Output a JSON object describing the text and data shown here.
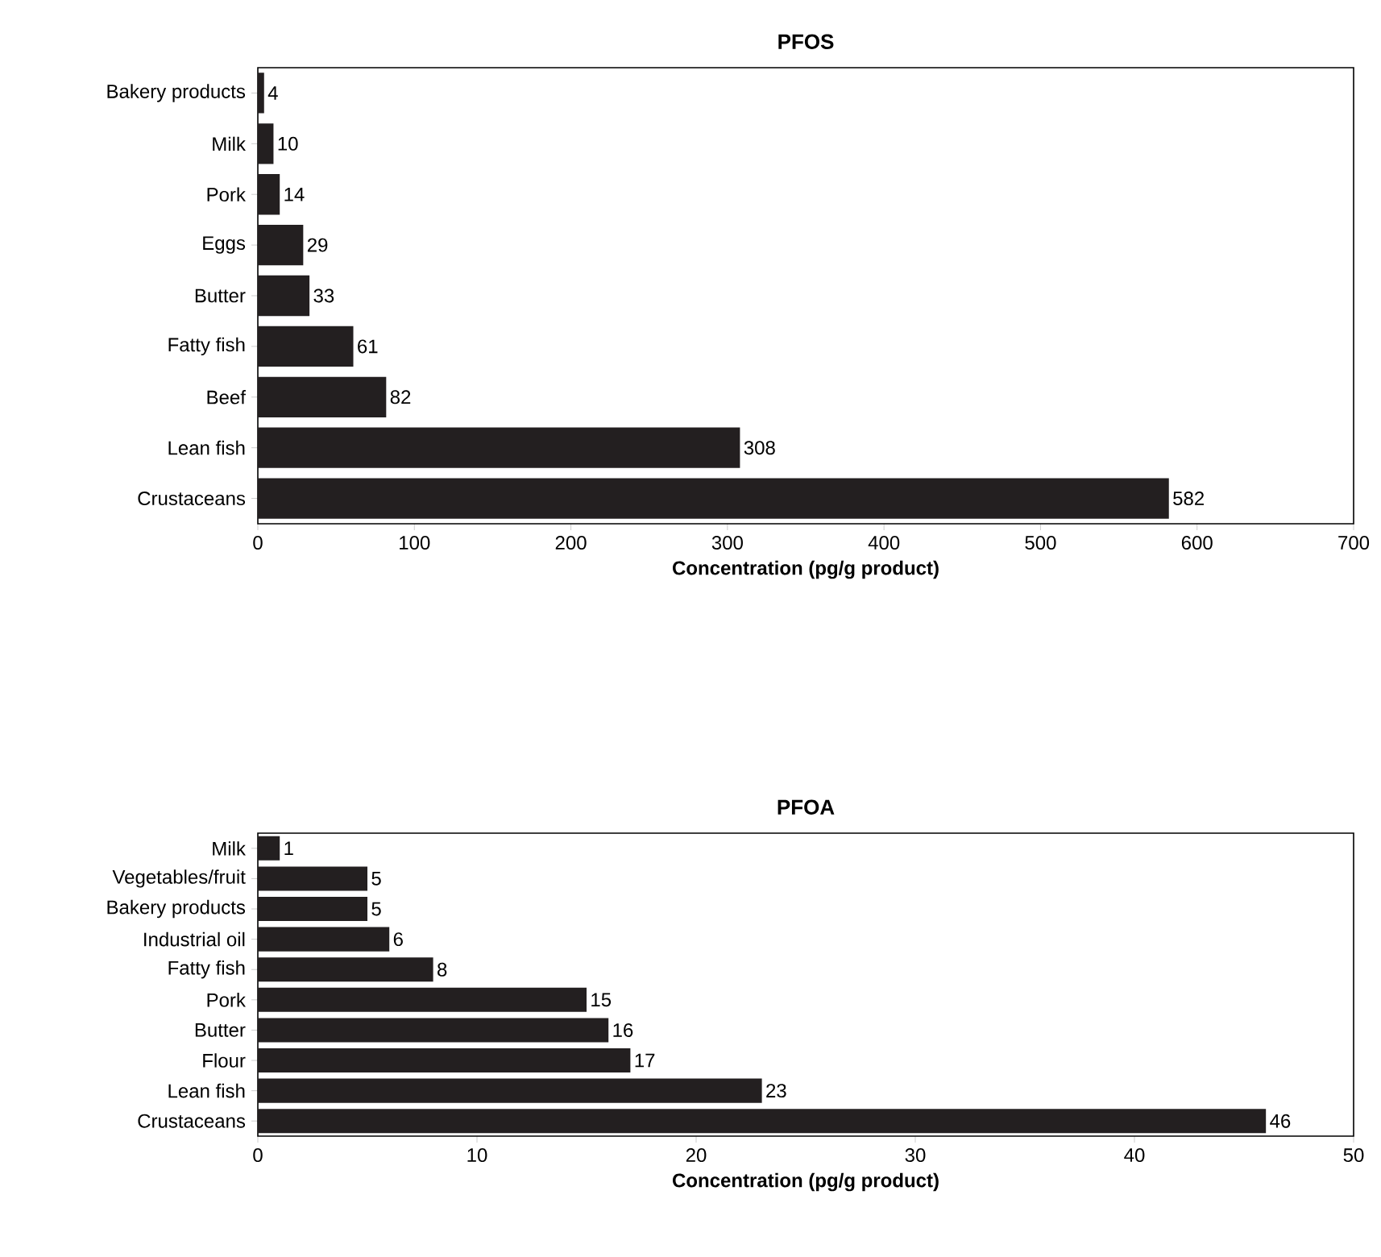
{
  "chart_data": [
    {
      "type": "bar",
      "orientation": "horizontal",
      "title": "PFOS",
      "xlabel": "Concentration (pg/g product)",
      "categories": [
        "Bakery products",
        "Milk",
        "Pork",
        "Eggs",
        "Butter",
        "Fatty fish",
        "Beef",
        "Lean fish",
        "Crustaceans"
      ],
      "values": [
        4,
        10,
        14,
        29,
        33,
        61,
        82,
        308,
        582
      ],
      "color": "#231f20",
      "xlim": [
        0,
        700
      ],
      "xticks": [
        0,
        100,
        200,
        300,
        400,
        500,
        600,
        700
      ],
      "data_labels": true
    },
    {
      "type": "bar",
      "orientation": "horizontal",
      "title": "PFOA",
      "xlabel": "Concentration (pg/g product)",
      "categories": [
        "Milk",
        "Vegetables/fruit",
        "Bakery products",
        "Industrial oil",
        "Fatty fish",
        "Pork",
        "Butter",
        "Flour",
        "Lean fish",
        "Crustaceans"
      ],
      "values": [
        1,
        5,
        5,
        6,
        8,
        15,
        16,
        17,
        23,
        46
      ],
      "color": "#231f20",
      "xlim": [
        0,
        50
      ],
      "xticks": [
        0,
        10,
        20,
        30,
        40,
        50
      ],
      "data_labels": true
    }
  ]
}
